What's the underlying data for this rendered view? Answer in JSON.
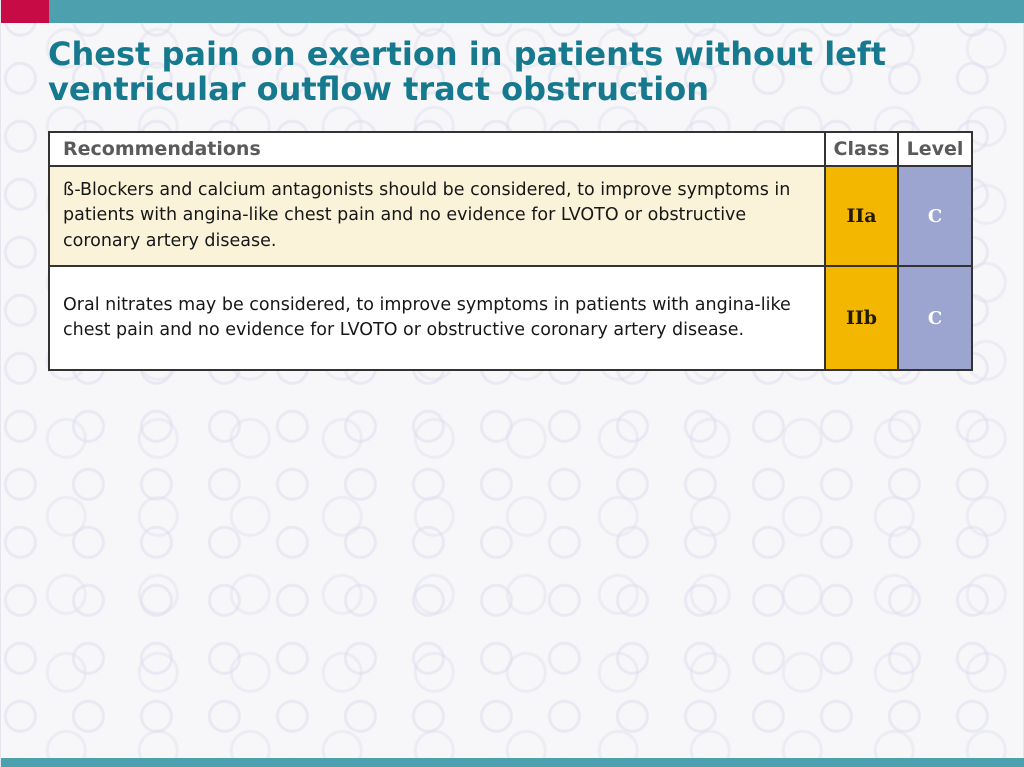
{
  "title": {
    "lines": [
      "Chest pain on exertion in patients without left",
      "ventricular outflow tract obstruction"
    ],
    "full_text": "Chest pain on exertion in patients without left ventricular outflow tract obstruction"
  },
  "table": {
    "headers": [
      "Recommendations",
      "Class",
      "Level"
    ],
    "rows": [
      {
        "recommendation": "ß-Blockers and calcium antagonists should be considered, to improve symptoms in patients with angina-like chest pain and no evidence for LVOTO or obstructive coronary artery disease.",
        "class": "IIa",
        "level": "C"
      },
      {
        "recommendation": "Oral nitrates may be considered, to improve symptoms in patients with angina-like chest pain and no evidence for LVOTO or obstructive coronary artery disease.",
        "class": "IIb",
        "level": "C"
      }
    ]
  },
  "colors": {
    "accent_crimson": "#C60B45",
    "accent_teal": "#4DA0AD",
    "title_teal": "#17798E",
    "class_amber": "#F3B700",
    "level_lavender": "#9CA4D0",
    "row_cream": "#FAF3D9",
    "header_text_gray": "#5A5A5A"
  }
}
